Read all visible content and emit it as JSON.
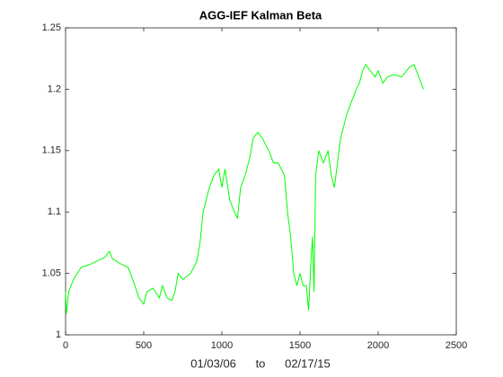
{
  "chart_data": {
    "type": "line",
    "title": "AGG-IEF  Kalman Beta",
    "xlabel": "01/03/06      to      02/17/15",
    "x": [
      0,
      5,
      20,
      50,
      100,
      150,
      200,
      250,
      280,
      300,
      350,
      400,
      430,
      470,
      500,
      520,
      560,
      600,
      620,
      650,
      680,
      700,
      720,
      750,
      800,
      840,
      860,
      880,
      900,
      920,
      950,
      980,
      1000,
      1020,
      1050,
      1080,
      1100,
      1120,
      1150,
      1180,
      1200,
      1230,
      1260,
      1300,
      1330,
      1360,
      1400,
      1420,
      1440,
      1460,
      1480,
      1500,
      1520,
      1540,
      1555,
      1570,
      1580,
      1590,
      1600,
      1620,
      1650,
      1680,
      1700,
      1720,
      1740,
      1760,
      1780,
      1800,
      1830,
      1860,
      1880,
      1900,
      1920,
      1950,
      1980,
      2000,
      2030,
      2060,
      2100,
      2150,
      2200,
      2230,
      2260,
      2290
    ],
    "series": [
      {
        "name": "beta",
        "color": "#00ff00",
        "values": [
          1.035,
          1.017,
          1.035,
          1.045,
          1.055,
          1.057,
          1.06,
          1.063,
          1.068,
          1.062,
          1.058,
          1.055,
          1.045,
          1.03,
          1.025,
          1.035,
          1.038,
          1.03,
          1.04,
          1.03,
          1.028,
          1.035,
          1.05,
          1.045,
          1.05,
          1.06,
          1.075,
          1.1,
          1.11,
          1.12,
          1.13,
          1.135,
          1.12,
          1.135,
          1.11,
          1.1,
          1.095,
          1.12,
          1.13,
          1.145,
          1.16,
          1.165,
          1.16,
          1.15,
          1.14,
          1.14,
          1.13,
          1.1,
          1.08,
          1.05,
          1.04,
          1.05,
          1.04,
          1.04,
          1.02,
          1.06,
          1.08,
          1.035,
          1.13,
          1.15,
          1.14,
          1.15,
          1.13,
          1.12,
          1.14,
          1.16,
          1.17,
          1.18,
          1.19,
          1.2,
          1.205,
          1.215,
          1.22,
          1.215,
          1.21,
          1.215,
          1.205,
          1.21,
          1.212,
          1.21,
          1.218,
          1.22,
          1.21,
          1.2
        ]
      }
    ],
    "xlim": [
      0,
      2500
    ],
    "xticks": [
      0,
      500,
      1000,
      1500,
      2000,
      2500
    ],
    "ylim": [
      1,
      1.25
    ],
    "yticks": [
      1,
      1.05,
      1.1,
      1.15,
      1.2,
      1.25
    ],
    "grid": false
  }
}
